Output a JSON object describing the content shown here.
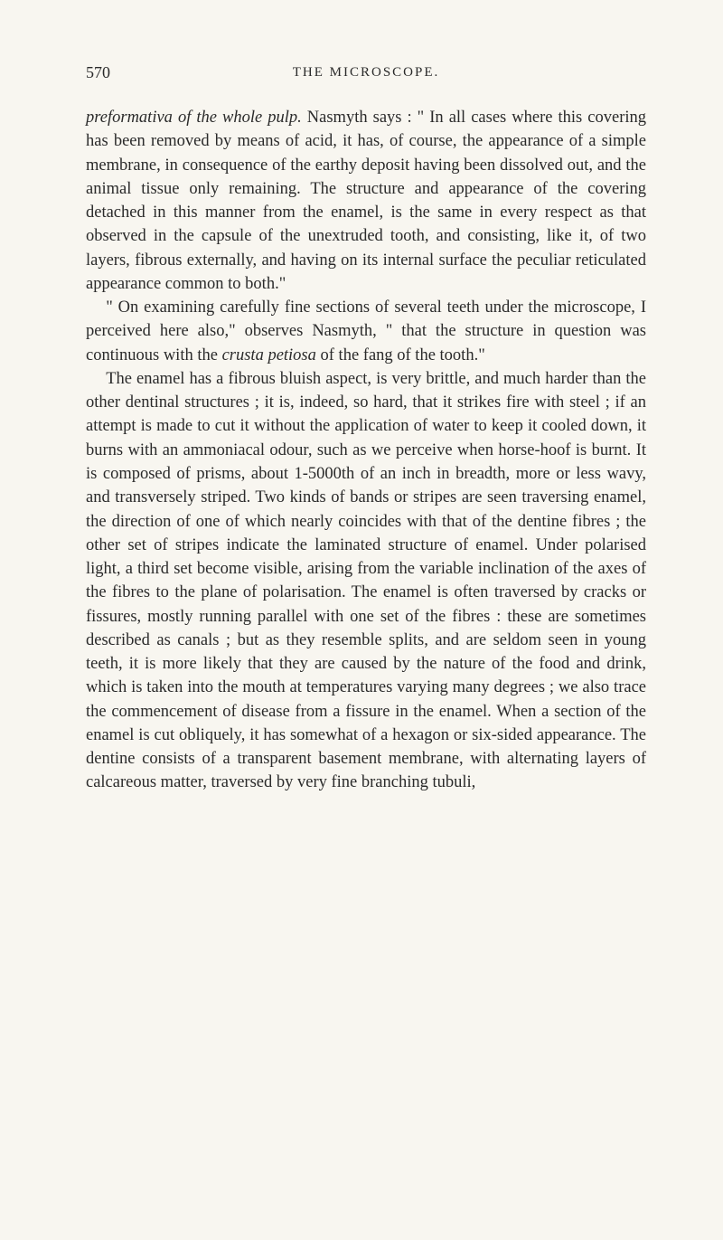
{
  "pageNumber": "570",
  "runningHeader": "THE MICROSCOPE.",
  "paragraphs": [
    {
      "segments": [
        {
          "text": "preformativa of the whole pulp.",
          "italic": true
        },
        {
          "text": " Nasmyth says : \" In all cases where this covering has been removed by means of acid, it has, of course, the appearance of a simple mem­brane, in consequence of the earthy deposit having been dissolved out, and the animal tissue only remaining. The structure and appearance of the covering detached in this manner from the enamel, is the same in every respect as that observed in the capsule of the unextruded tooth, and consisting, like it, of two layers, fibrous externally, and having on its internal surface the peculiar reticulated appearance common to both.\"",
          "italic": false
        }
      ]
    },
    {
      "segments": [
        {
          "text": "\" On examining carefully fine sections of several teeth under the microscope, I perceived here also,\" observes Nasmyth, \" that the structure in question was continuous with the ",
          "italic": false
        },
        {
          "text": "crusta petiosa",
          "italic": true
        },
        {
          "text": " of the fang of the tooth.\"",
          "italic": false
        }
      ]
    },
    {
      "segments": [
        {
          "text": "The enamel has a fibrous bluish aspect, is very brittle, and much harder than the other dentinal structures ; it is, indeed, so hard, that it strikes fire with steel ; if an attempt is made to cut it without the application of water to keep it cooled down, it burns with an ammoniacal odour, such as we perceive when horse-hoof is burnt. It is composed of prisms, about 1-5000th of an inch in breadth, more or less wavy, and transversely striped. Two kinds of bands or stripes are seen traversing enamel, the direction of one of which nearly coincides with that of the dentine fibres ; the other set of stripes indicate the laminated struc­ture of enamel. Under polarised light, a third set become visible, arising from the variable inclination of the axes of the fibres to the plane of polarisation. The enamel is often traversed by cracks or fissures, mostly running parallel with one set of the fibres : these are sometimes described as canals ; but as they resemble splits, and are seldom seen in young teeth, it is more likely that they are caused by the nature of the food and drink, which is taken into the mouth at temperatures varying many de­grees ; we also trace the commencement of disease from a fissure in the enamel. When a section of the enamel is cut obliquely, it has somewhat of a hexagon or six-sided appearance. The dentine consists of a transparent basement membrane, with alternating layers of cal­careous matter, traversed by very fine branching tubuli,",
          "italic": false
        }
      ]
    }
  ]
}
